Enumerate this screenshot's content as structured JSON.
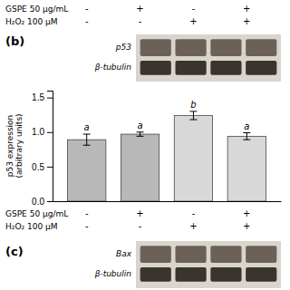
{
  "chart_data": {
    "type": "bar",
    "categories": [
      null,
      null,
      null,
      null
    ],
    "values": [
      0.89,
      0.97,
      1.24,
      0.94
    ],
    "errors": [
      0.08,
      0.03,
      0.06,
      0.05
    ],
    "sig_labels": [
      "a",
      "a",
      "b",
      "a"
    ],
    "colors": [
      "#b8b8b8",
      "#b8b8b8",
      "#d8d8d8",
      "#d8d8d8"
    ],
    "ylabel": "p53 expression\n(arbitrary units)",
    "ylim": [
      0.0,
      1.6
    ],
    "yticks": [
      {
        "value": 0.0,
        "label": "0.0"
      },
      0.5,
      {
        "value": 1.0,
        "label": "1.0"
      },
      1.5
    ],
    "row_labels": [
      "GSPE 50 μg/mL",
      "H₂O₂ 100 μM"
    ],
    "row_signs": [
      [
        "-",
        "+",
        "-",
        "+"
      ],
      [
        "-",
        "-",
        "+",
        "+"
      ]
    ],
    "annotations": [
      "(b)",
      "(c)",
      "p53",
      "β-tubulin",
      "Bax"
    ]
  }
}
